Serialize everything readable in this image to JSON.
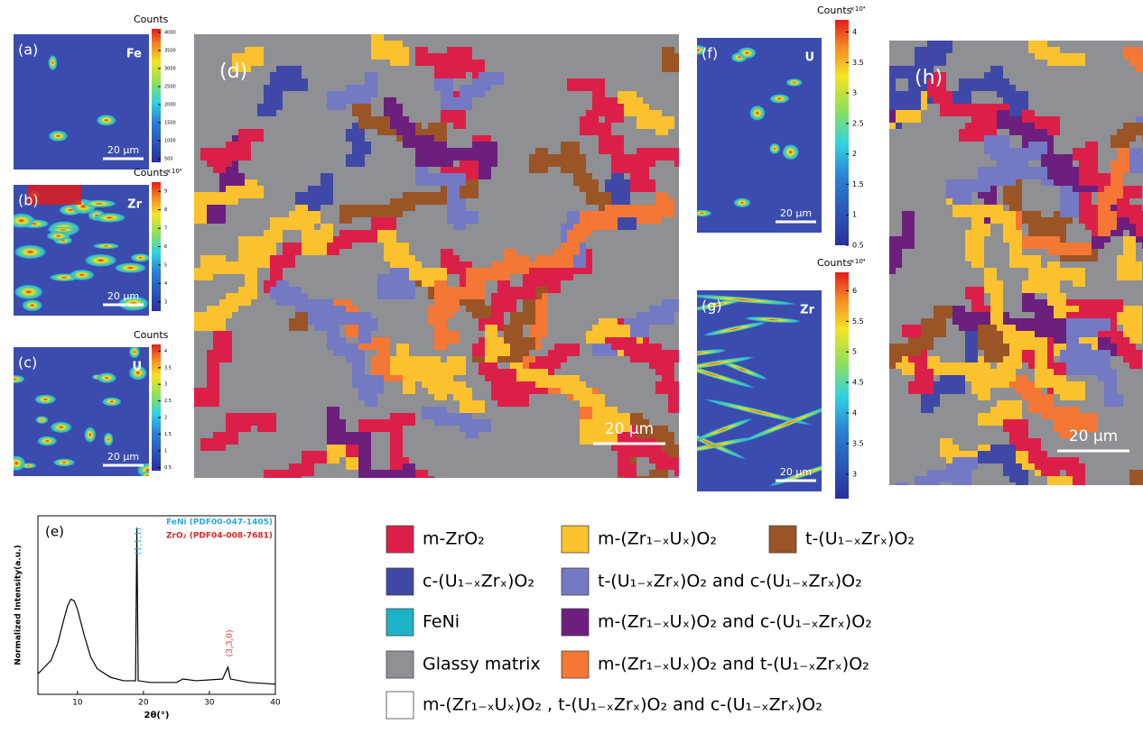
{
  "panels": [
    {
      "label": "(a)",
      "element": "Fe",
      "scale_bar": "20 μm",
      "colorbar": {
        "title": "Counts",
        "lim": [
          400,
          4100
        ],
        "ticks": [
          4000,
          3500,
          3000,
          2500,
          2000,
          1500,
          1000,
          500
        ]
      }
    },
    {
      "label": "(b)",
      "element": "Zr",
      "scale_bar": "20 μm",
      "colorbar": {
        "title": "Counts",
        "multiplier": "×10⁴",
        "lim": [
          2.5,
          9.5
        ],
        "ticks": [
          9,
          8,
          7,
          6,
          5,
          4,
          3
        ]
      }
    },
    {
      "label": "(c)",
      "element": "U",
      "scale_bar": "20 μm",
      "colorbar": {
        "title": "Counts",
        "lim": [
          0.4,
          4.2
        ],
        "ticks": [
          4,
          3.5,
          3,
          2.5,
          2,
          1.5,
          1,
          0.5
        ]
      }
    },
    {
      "label": "(d)",
      "scale_bar": "20 μm"
    },
    {
      "label": "(f)",
      "element": "U",
      "scale_bar": "20 μm",
      "colorbar": {
        "title": "Counts",
        "multiplier": "×10⁴",
        "lim": [
          0.5,
          4.2
        ],
        "ticks": [
          4,
          3.5,
          3,
          2.5,
          2,
          1.5,
          1,
          0.5
        ]
      }
    },
    {
      "label": "(g)",
      "element": "Zr",
      "scale_bar": "20 μm",
      "colorbar": {
        "title": "Counts",
        "multiplier": "×10⁴",
        "lim": [
          2.6,
          6.3
        ],
        "ticks": [
          6,
          5.5,
          5,
          4.5,
          4,
          3.5,
          3
        ]
      }
    },
    {
      "label": "(h)",
      "scale_bar": "20 μm"
    }
  ],
  "xrd": {
    "label": "(e)",
    "ylabel": "Normalized Intensity(a.u.)",
    "xlabel": "2θ(°)",
    "xlim": [
      4,
      40
    ],
    "xticks": [
      10,
      20,
      30,
      40
    ],
    "ylim": [
      0,
      1.05
    ],
    "x": [
      4,
      6,
      7,
      8,
      8.5,
      9,
      9.5,
      10,
      11,
      12,
      13,
      15,
      17,
      18.8,
      19,
      19.2,
      21,
      25,
      26,
      28,
      32,
      32.8,
      33.2,
      36,
      40
    ],
    "intensity": [
      0.12,
      0.2,
      0.3,
      0.45,
      0.52,
      0.56,
      0.55,
      0.5,
      0.35,
      0.22,
      0.15,
      0.1,
      0.08,
      0.08,
      0.98,
      0.08,
      0.07,
      0.07,
      0.09,
      0.08,
      0.09,
      0.16,
      0.09,
      0.07,
      0.06
    ],
    "peaks": [
      {
        "label": "(1,1,1)",
        "x": 19,
        "color": "#29a9d6"
      },
      {
        "label": "(3,3,0)",
        "x": 32.8,
        "color": "#d9262b"
      }
    ],
    "references": [
      {
        "label": "FeNi (PDF00-047-1405)",
        "color": "#29a9d6"
      },
      {
        "label": "ZrO₂ (PDF04-008-7681)",
        "color": "#d9262b"
      }
    ]
  },
  "legend": [
    {
      "label": "m-ZrO₂",
      "color": "#dc1f49"
    },
    {
      "label": "m-(Zr₁₋ₓUₓ)O₂",
      "color": "#fcc22d"
    },
    {
      "label": "t-(U₁₋ₓZrₓ)O₂",
      "color": "#9a5426"
    },
    {
      "label": "c-(U₁₋ₓZrₓ)O₂",
      "color": "#3f48a6"
    },
    {
      "label": "t-(U₁₋ₓZrₓ)O₂ and c-(U₁₋ₓZrₓ)O₂",
      "color": "#7479c4"
    },
    {
      "label": "FeNi",
      "color": "#1cb3c8"
    },
    {
      "label": "m-(Zr₁₋ₓUₓ)O₂ and c-(U₁₋ₓZrₓ)O₂",
      "color": "#6c1f7d"
    },
    {
      "label": "Glassy matrix",
      "color": "#8e9093"
    },
    {
      "label": "m-(Zr₁₋ₓUₓ)O₂ and t-(U₁₋ₓZrₓ)O₂",
      "color": "#f47735"
    },
    {
      "label": "m-(Zr₁₋ₓUₓ)O₂ , t-(U₁₋ₓZrₓ)O₂ and c-(U₁₋ₓZrₓ)O₂",
      "color": "#ffffff"
    }
  ]
}
